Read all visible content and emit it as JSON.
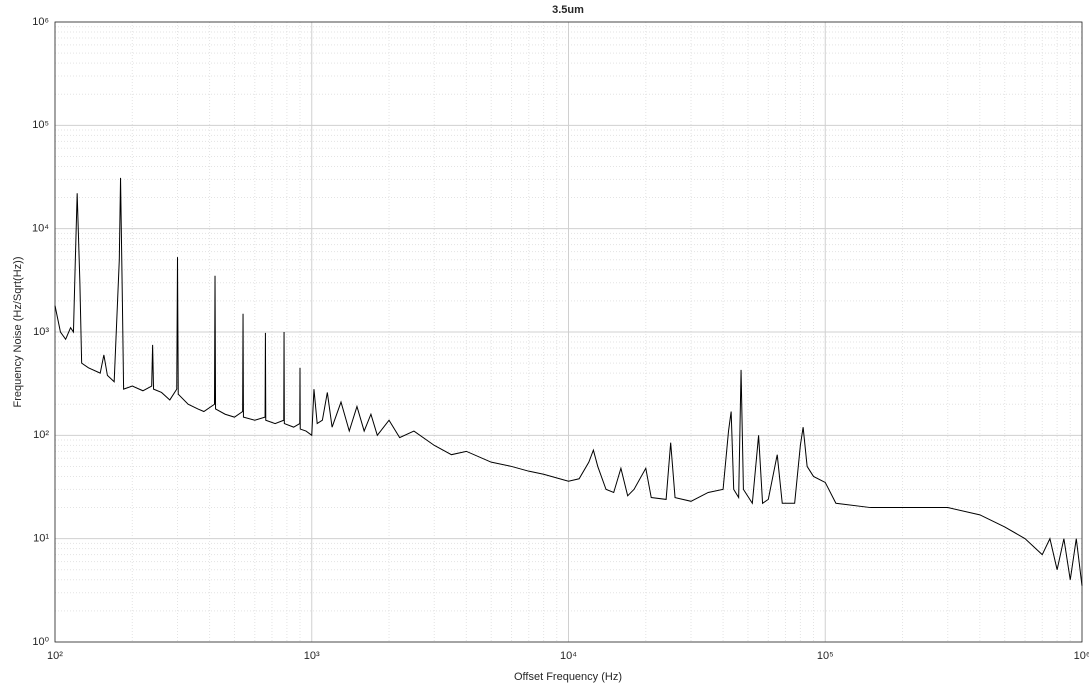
{
  "chart_data": {
    "type": "line",
    "title": "3.5um",
    "x_label": "Offset Frequency (Hz)",
    "y_label": "Frequency Noise (Hz/Sqrt(Hz))",
    "x_scale": "log",
    "y_scale": "log",
    "grid": true,
    "color": "#000000",
    "xlim": [
      100,
      1000000
    ],
    "ylim": [
      1,
      1000000
    ],
    "xticks": [
      {
        "value": 100,
        "label": "10²"
      },
      {
        "value": 1000,
        "label": "10³"
      },
      {
        "value": 10000,
        "label": "10⁴"
      },
      {
        "value": 100000,
        "label": "10⁵"
      },
      {
        "value": 1000000,
        "label": "10⁶"
      }
    ],
    "yticks": [
      {
        "value": 1,
        "label": "10⁰"
      },
      {
        "value": 10,
        "label": "10¹"
      },
      {
        "value": 100,
        "label": "10²"
      },
      {
        "value": 1000,
        "label": "10³"
      },
      {
        "value": 10000,
        "label": "10⁴"
      },
      {
        "value": 100000,
        "label": "10⁵"
      },
      {
        "value": 1000000,
        "label": "10⁶"
      }
    ],
    "x": [
      100,
      105,
      110,
      115,
      118,
      120,
      122,
      125,
      127,
      135,
      150,
      155,
      160,
      170,
      178,
      180,
      183,
      185,
      200,
      220,
      238,
      240,
      242,
      260,
      280,
      298,
      300,
      302,
      330,
      360,
      380,
      418,
      420,
      422,
      460,
      500,
      538,
      540,
      542,
      600,
      658,
      660,
      662,
      720,
      778,
      780,
      782,
      850,
      898,
      900,
      902,
      950,
      1000,
      1020,
      1050,
      1100,
      1150,
      1200,
      1300,
      1400,
      1500,
      1600,
      1700,
      1800,
      2000,
      2200,
      2500,
      3000,
      3500,
      4000,
      5000,
      6000,
      7000,
      8000,
      10000,
      11000,
      12000,
      12500,
      13000,
      14000,
      15000,
      16000,
      17000,
      18000,
      20000,
      21000,
      24000,
      25000,
      26000,
      30000,
      35000,
      40000,
      42000,
      43000,
      44000,
      46000,
      47000,
      48000,
      52000,
      55000,
      57000,
      60000,
      65000,
      68000,
      72000,
      76000,
      80000,
      82000,
      85000,
      90000,
      100000,
      110000,
      150000,
      200000,
      300000,
      400000,
      500000,
      600000,
      700000,
      750000,
      800000,
      850000,
      900000,
      950000,
      1000000
    ],
    "values": [
      1800,
      1000,
      850,
      1100,
      1000,
      5000,
      22000,
      3000,
      500,
      450,
      400,
      600,
      380,
      330,
      5000,
      31000,
      2000,
      280,
      300,
      270,
      300,
      750,
      280,
      260,
      220,
      280,
      5300,
      250,
      200,
      180,
      170,
      200,
      3500,
      180,
      160,
      150,
      170,
      1500,
      150,
      140,
      150,
      980,
      140,
      130,
      140,
      1000,
      130,
      120,
      130,
      450,
      115,
      110,
      100,
      280,
      130,
      140,
      260,
      120,
      210,
      110,
      190,
      110,
      160,
      100,
      140,
      95,
      110,
      80,
      65,
      70,
      55,
      50,
      45,
      42,
      36,
      38,
      55,
      72,
      50,
      30,
      28,
      48,
      26,
      30,
      48,
      25,
      24,
      85,
      25,
      23,
      28,
      30,
      110,
      170,
      30,
      25,
      430,
      30,
      22,
      100,
      22,
      24,
      65,
      22,
      22,
      22,
      80,
      120,
      50,
      40,
      35,
      22,
      20,
      20,
      20,
      17,
      13,
      10,
      7,
      10,
      5,
      10,
      4,
      10,
      3.5
    ]
  }
}
